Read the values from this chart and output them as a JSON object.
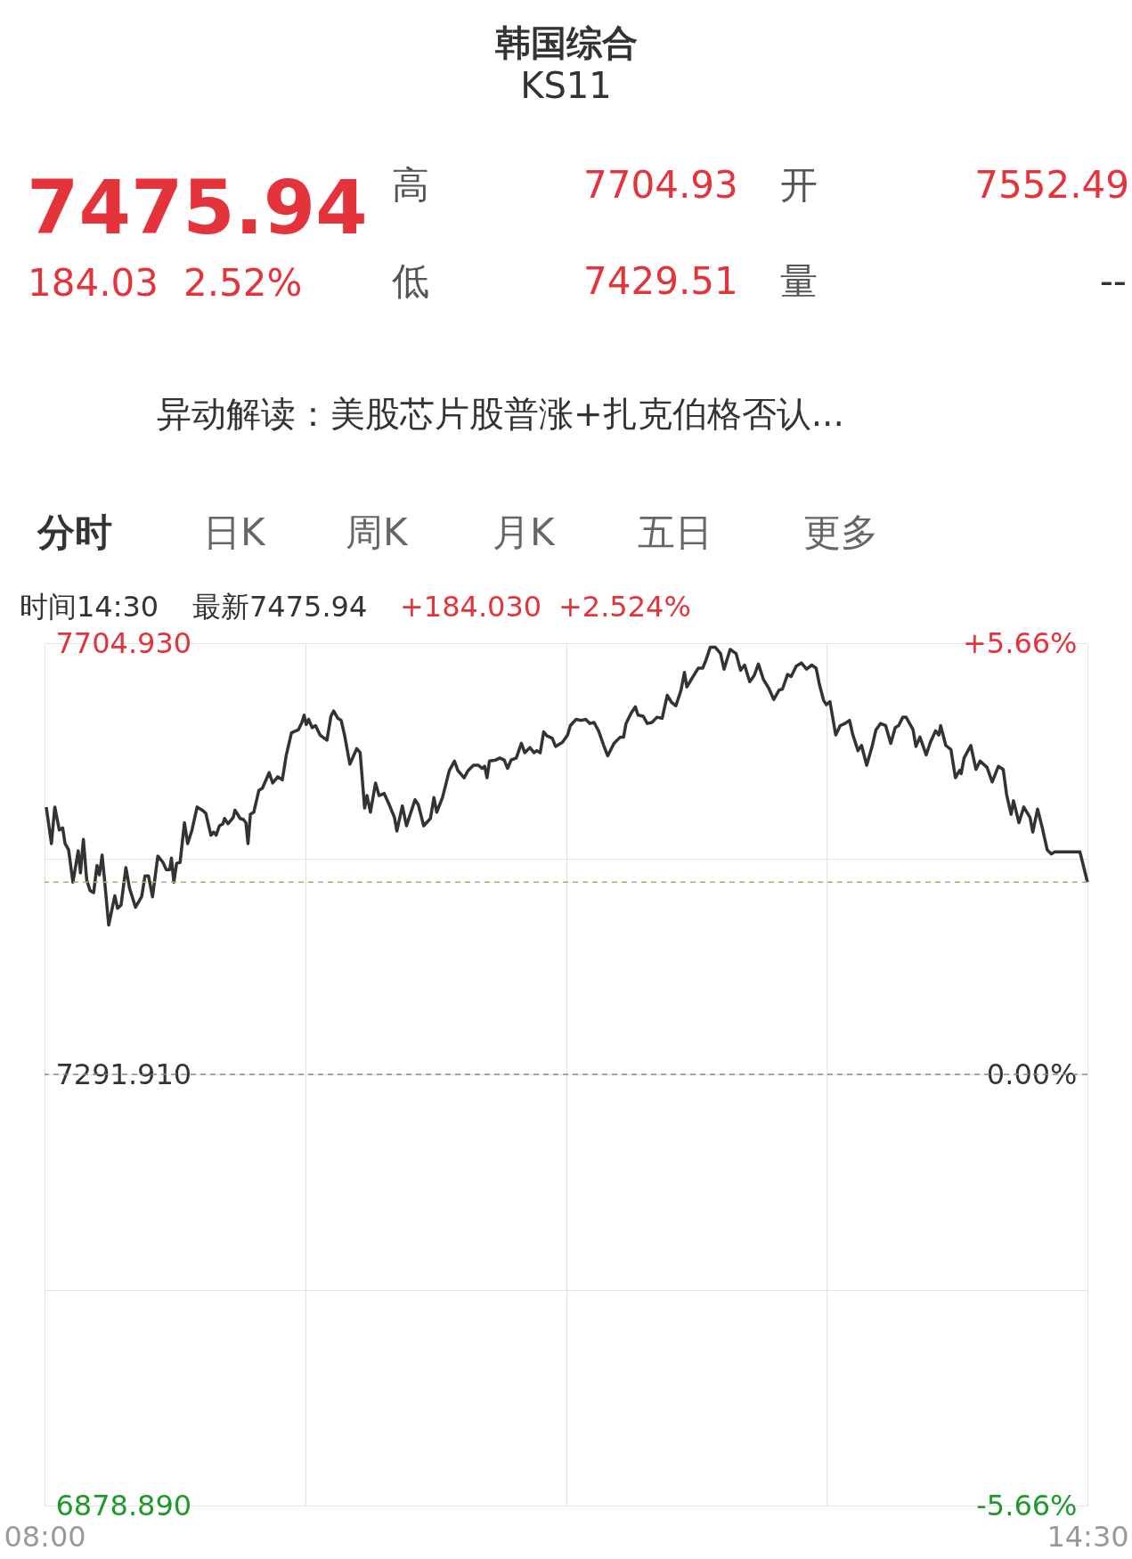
{
  "chart_data": {
    "type": "line",
    "title": "韩国综合",
    "subtitle": "KS11",
    "annotations": [
      "7475.94",
      "184.03",
      "2.52%",
      "高",
      "7704.93",
      "开",
      "7552.49",
      "低",
      "7429.51",
      "量",
      "--",
      "异动解读：美股芯片股普涨+扎克伯格否认...",
      "分时",
      "日K",
      "周K",
      "月K",
      "五日",
      "更多",
      "时间14:30",
      "最新7475.94",
      "+184.030",
      "+2.524%"
    ],
    "x": [
      8.011,
      8.043,
      8.064,
      8.092,
      8.113,
      8.128,
      8.15,
      8.177,
      8.21,
      8.224,
      8.242,
      8.263,
      8.284,
      8.306,
      8.327,
      8.342,
      8.359,
      8.374,
      8.4,
      8.438,
      8.455,
      8.477,
      8.507,
      8.53,
      8.567,
      8.605,
      8.626,
      8.648,
      8.673,
      8.706,
      8.738,
      8.759,
      8.78,
      8.791,
      8.806,
      8.823,
      8.845,
      8.872,
      8.892,
      8.919,
      8.951,
      8.983,
      9.005,
      9.037,
      9.054,
      9.069,
      9.09,
      9.112,
      9.122,
      9.144,
      9.176,
      9.187,
      9.219,
      9.24,
      9.255,
      9.268,
      9.283,
      9.304,
      9.336,
      9.358,
      9.4,
      9.422,
      9.454,
      9.482,
      9.507,
      9.539,
      9.582,
      9.604,
      9.618,
      9.631,
      9.646,
      9.668,
      9.689,
      9.717,
      9.76,
      9.785,
      9.802,
      9.828,
      9.849,
      9.871,
      9.903,
      9.946,
      9.967,
      9.995,
      10.01,
      10.031,
      10.063,
      10.085,
      10.117,
      10.149,
      10.181,
      10.196,
      10.23,
      10.256,
      10.277,
      10.309,
      10.33,
      10.363,
      10.405,
      10.427,
      10.444,
      10.48,
      10.523,
      10.555,
      10.576,
      10.615,
      10.64,
      10.673,
      10.705,
      10.726,
      10.743,
      10.758,
      10.773,
      10.811,
      10.837,
      10.865,
      10.886,
      10.908,
      10.94,
      10.972,
      10.993,
      11.025,
      11.051,
      11.068,
      11.089,
      11.111,
      11.132,
      11.164,
      11.185,
      11.228,
      11.26,
      11.277,
      11.313,
      11.345,
      11.373,
      11.399,
      11.425,
      11.453,
      11.485,
      11.51,
      11.549,
      11.588,
      11.609,
      11.624,
      11.656,
      11.682,
      11.699,
      11.731,
      11.757,
      11.785,
      11.817,
      11.849,
      11.881,
      11.909,
      11.935,
      11.967,
      11.988,
      12.003,
      12.038,
      12.074,
      12.102,
      12.123,
      12.149,
      12.181,
      12.213,
      12.235,
      12.273,
      12.31,
      12.338,
      12.363,
      12.395,
      12.423,
      12.449,
      12.481,
      12.513,
      12.545,
      12.578,
      12.599,
      12.631,
      12.653,
      12.685,
      12.717,
      12.749,
      12.781,
      12.809,
      12.83,
      12.856,
      12.873,
      12.895,
      12.931,
      12.959,
      12.989,
      13.017,
      13.038,
      13.07,
      13.092,
      13.124,
      13.156,
      13.182,
      13.21,
      13.242,
      13.274,
      13.302,
      13.323,
      13.349,
      13.37,
      13.413,
      13.431,
      13.456,
      13.495,
      13.521,
      13.553,
      13.574,
      13.585,
      13.617,
      13.649,
      13.677,
      13.703,
      13.713,
      13.731,
      13.773,
      13.805,
      13.831,
      13.874,
      13.906,
      13.945,
      13.975,
      13.996,
      14.024,
      14.039,
      14.073,
      14.103,
      14.142,
      14.159,
      14.189,
      14.217,
      14.249,
      14.275,
      14.296,
      14.453,
      14.5
    ],
    "series": [
      {
        "color": "#333333",
        "values": [
          7548,
          7513,
          7548,
          7526,
          7528,
          7513,
          7507,
          7476,
          7506,
          7485,
          7517,
          7478,
          7468,
          7466,
          7492,
          7483,
          7502,
          7478,
          7435,
          7463,
          7451,
          7454,
          7490,
          7470,
          7452,
          7462,
          7482,
          7482,
          7462,
          7501,
          7495,
          7488,
          7488,
          7499,
          7476,
          7494,
          7495,
          7533,
          7513,
          7526,
          7548,
          7545,
          7542,
          7521,
          7524,
          7521,
          7530,
          7532,
          7537,
          7532,
          7538,
          7545,
          7537,
          7536,
          7533,
          7513,
          7541,
          7543,
          7564,
          7566,
          7581,
          7571,
          7577,
          7574,
          7598,
          7619,
          7622,
          7629,
          7636,
          7627,
          7632,
          7624,
          7626,
          7617,
          7612,
          7635,
          7640,
          7633,
          7631,
          7616,
          7589,
          7604,
          7600,
          7547,
          7559,
          7543,
          7571,
          7559,
          7561,
          7550,
          7538,
          7525,
          7549,
          7530,
          7540,
          7555,
          7550,
          7530,
          7537,
          7557,
          7543,
          7557,
          7583,
          7592,
          7583,
          7576,
          7583,
          7588,
          7588,
          7585,
          7587,
          7576,
          7592,
          7593,
          7595,
          7593,
          7585,
          7593,
          7595,
          7609,
          7600,
          7605,
          7600,
          7602,
          7600,
          7620,
          7616,
          7614,
          7606,
          7610,
          7617,
          7626,
          7632,
          7631,
          7632,
          7628,
          7629,
          7621,
          7607,
          7597,
          7609,
          7615,
          7615,
          7628,
          7638,
          7644,
          7636,
          7635,
          7628,
          7629,
          7634,
          7633,
          7655,
          7648,
          7645,
          7660,
          7677,
          7663,
          7672,
          7681,
          7681,
          7689,
          7701,
          7701,
          7695,
          7680,
          7699,
          7695,
          7679,
          7684,
          7668,
          7674,
          7685,
          7670,
          7662,
          7651,
          7660,
          7661,
          7675,
          7673,
          7683,
          7686,
          7680,
          7684,
          7681,
          7665,
          7650,
          7646,
          7649,
          7617,
          7626,
          7628,
          7631,
          7617,
          7602,
          7607,
          7588,
          7605,
          7622,
          7628,
          7626,
          7609,
          7624,
          7626,
          7634,
          7634,
          7622,
          7606,
          7615,
          7598,
          7610,
          7621,
          7617,
          7626,
          7607,
          7603,
          7576,
          7583,
          7580,
          7595,
          7607,
          7584,
          7592,
          7586,
          7572,
          7587,
          7584,
          7560,
          7541,
          7554,
          7533,
          7548,
          7538,
          7524,
          7546,
          7529,
          7507,
          7503,
          7505,
          7505,
          7476
        ]
      }
    ],
    "xlim": [
      8,
      14.5
    ],
    "xticks": [
      {
        "value": 8,
        "label": "08:00"
      },
      {
        "value": 9.625,
        "label": null
      },
      {
        "value": 11.25,
        "label": null
      },
      {
        "value": 12.875,
        "label": null
      },
      {
        "value": 14.5,
        "label": "14:30"
      }
    ],
    "ylim": [
      6878.89,
      7704.93
    ],
    "yticks": [
      {
        "value": 6878.89,
        "label": "6878.890"
      },
      {
        "value": 7085.4,
        "label": null
      },
      {
        "value": 7291.91,
        "label": "7291.910"
      },
      {
        "value": 7498.42,
        "label": null
      },
      {
        "value": 7704.93,
        "label": "7704.930"
      }
    ],
    "y2lim": [
      -5.66,
      5.66
    ],
    "y2ticks": [
      {
        "value": -5.66,
        "label": "-5.66%"
      },
      {
        "value": 0,
        "label": "0.00%"
      },
      {
        "value": 5.66,
        "label": "+5.66%"
      }
    ],
    "ref_lines": [
      {
        "axis": "y",
        "value": 7475.94,
        "color": "#b8a878",
        "line_style": "dashed"
      },
      {
        "axis": "y2",
        "value": 0,
        "color": "#8a8a8a",
        "line_style": "dashed"
      }
    ],
    "grid": true
  }
}
